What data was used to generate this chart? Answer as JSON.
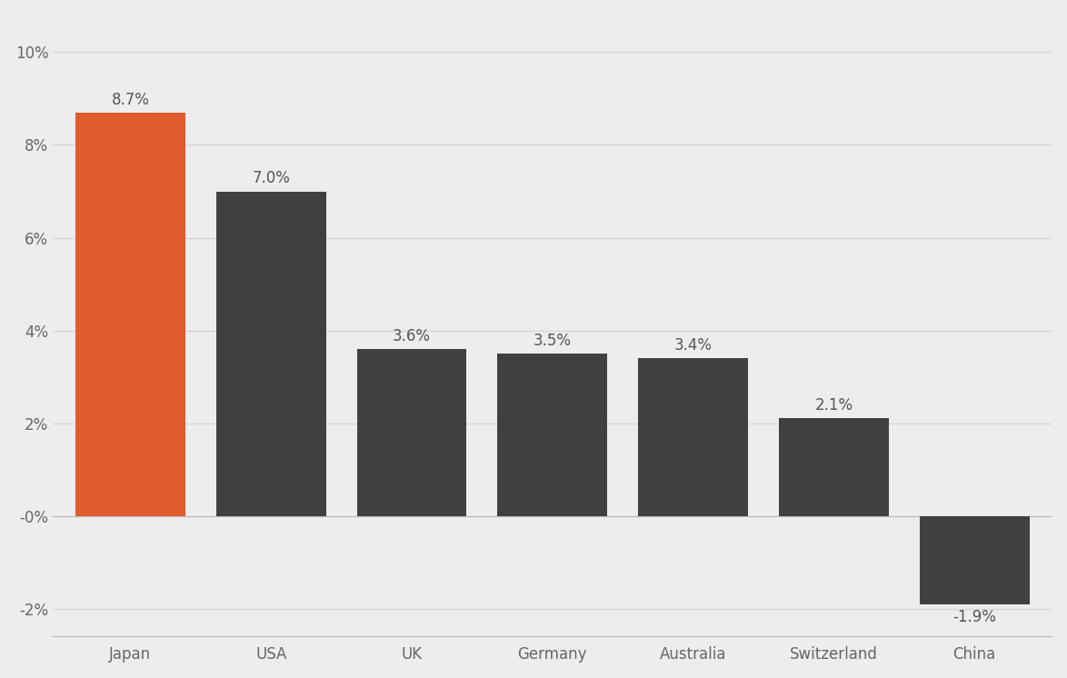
{
  "categories": [
    "Japan",
    "USA",
    "UK",
    "Germany",
    "Australia",
    "Switzerland",
    "China"
  ],
  "values": [
    8.7,
    7.0,
    3.6,
    3.5,
    3.4,
    2.1,
    -1.9
  ],
  "labels": [
    "8.7%",
    "7.0%",
    "3.6%",
    "3.5%",
    "3.4%",
    "2.1%",
    "-1.9%"
  ],
  "bar_colors": [
    "#e05c2e",
    "#404040",
    "#404040",
    "#404040",
    "#404040",
    "#404040",
    "#404040"
  ],
  "ylim": [
    -2.6,
    10.8
  ],
  "yticks": [
    -2,
    0,
    2,
    4,
    6,
    8,
    10
  ],
  "ytick_labels": [
    "-2%",
    "-0%",
    "2%",
    "4%",
    "6%",
    "8%",
    "10%"
  ],
  "background_color": "#eeecec",
  "bar_width": 0.78,
  "label_fontsize": 12,
  "tick_fontsize": 12,
  "grid_color": "#d8d5d5",
  "grid_linewidth": 1.0
}
